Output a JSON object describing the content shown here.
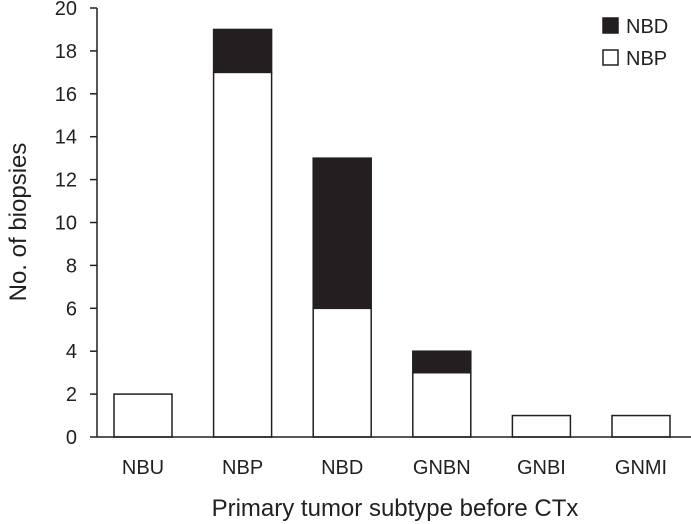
{
  "chart_data": {
    "type": "bar",
    "stacked": true,
    "categories": [
      "NBU",
      "NBP",
      "NBD",
      "GNBN",
      "GNBI",
      "GNMI"
    ],
    "series": [
      {
        "name": "NBP",
        "values": [
          2,
          17,
          6,
          3,
          1,
          1
        ],
        "color": "#ffffff"
      },
      {
        "name": "NBD",
        "values": [
          0,
          2,
          7,
          1,
          0,
          0
        ],
        "color": "#231f20"
      }
    ],
    "legend_order": [
      "NBD",
      "NBP"
    ],
    "legend_position": "top-right",
    "xlabel": "Primary tumor subtype before CTx",
    "ylabel": "No. of biopsies",
    "ylim": [
      0,
      20
    ],
    "yticks": [
      0,
      2,
      4,
      6,
      8,
      10,
      12,
      14,
      16,
      18,
      20
    ],
    "grid": false
  }
}
